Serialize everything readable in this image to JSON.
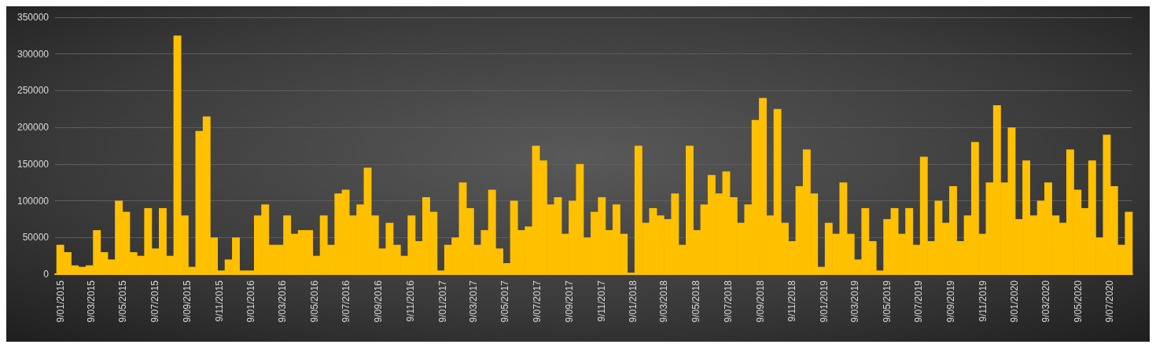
{
  "chart_data": {
    "type": "bar",
    "color": "#ffc000",
    "grid": "y",
    "x": [
      "2015-01-09",
      "2015-01-23",
      "2015-02-06",
      "2015-02-20",
      "2015-03-06",
      "2015-03-20",
      "2015-04-03",
      "2015-04-17",
      "2015-05-01",
      "2015-05-15",
      "2015-05-29",
      "2015-06-12",
      "2015-06-26",
      "2015-07-10",
      "2015-07-24",
      "2015-08-07",
      "2015-08-21",
      "2015-09-04",
      "2015-09-18",
      "2015-10-02",
      "2015-10-16",
      "2015-10-30",
      "2015-11-13",
      "2015-11-27",
      "2015-12-11",
      "2015-12-25",
      "2016-01-08",
      "2016-01-22",
      "2016-02-05",
      "2016-02-19",
      "2016-03-04",
      "2016-03-18",
      "2016-04-01",
      "2016-04-15",
      "2016-04-29",
      "2016-05-13",
      "2016-05-27",
      "2016-06-10",
      "2016-06-24",
      "2016-07-08",
      "2016-07-22",
      "2016-08-05",
      "2016-08-19",
      "2016-09-02",
      "2016-09-16",
      "2016-09-30",
      "2016-10-14",
      "2016-10-28",
      "2016-11-11",
      "2016-11-25",
      "2016-12-09",
      "2016-12-23",
      "2017-01-06",
      "2017-01-20",
      "2017-02-03",
      "2017-02-17",
      "2017-03-03",
      "2017-03-17",
      "2017-03-31",
      "2017-04-14",
      "2017-04-28",
      "2017-05-12",
      "2017-05-26",
      "2017-06-09",
      "2017-06-23",
      "2017-07-07",
      "2017-07-21",
      "2017-08-04",
      "2017-08-18",
      "2017-09-01",
      "2017-09-15",
      "2017-09-29",
      "2017-10-13",
      "2017-10-27",
      "2017-11-10",
      "2017-11-24",
      "2017-12-08",
      "2017-12-22",
      "2018-01-05",
      "2018-01-19",
      "2018-02-02",
      "2018-02-16",
      "2018-03-02",
      "2018-03-16",
      "2018-03-30",
      "2018-04-13",
      "2018-04-27",
      "2018-05-11",
      "2018-05-25",
      "2018-06-08",
      "2018-06-22",
      "2018-07-06",
      "2018-07-20",
      "2018-08-03",
      "2018-08-17",
      "2018-08-31",
      "2018-09-14",
      "2018-09-28",
      "2018-10-12",
      "2018-10-26",
      "2018-11-09",
      "2018-11-23",
      "2018-12-07",
      "2018-12-21",
      "2019-01-04",
      "2019-01-18",
      "2019-02-01",
      "2019-02-15",
      "2019-03-01",
      "2019-03-15",
      "2019-03-29",
      "2019-04-12",
      "2019-04-26",
      "2019-05-10",
      "2019-05-24",
      "2019-06-07",
      "2019-06-21",
      "2019-07-05",
      "2019-07-19",
      "2019-08-02",
      "2019-08-16",
      "2019-08-30",
      "2019-09-13",
      "2019-09-27",
      "2019-10-11",
      "2019-10-25",
      "2019-11-08",
      "2019-11-22",
      "2019-12-06",
      "2019-12-20",
      "2020-01-03",
      "2020-01-17",
      "2020-01-31",
      "2020-02-14",
      "2020-02-28",
      "2020-03-13",
      "2020-03-27",
      "2020-04-10",
      "2020-04-24",
      "2020-05-08",
      "2020-05-22",
      "2020-06-05",
      "2020-06-19",
      "2020-07-03",
      "2020-07-17",
      "2020-07-31",
      "2020-08-14"
    ],
    "values": [
      40000,
      30000,
      12000,
      10000,
      12000,
      60000,
      30000,
      20000,
      100000,
      85000,
      30000,
      25000,
      90000,
      35000,
      90000,
      25000,
      325000,
      80000,
      10000,
      195000,
      215000,
      50000,
      5000,
      20000,
      50000,
      5000,
      5000,
      80000,
      95000,
      40000,
      40000,
      80000,
      55000,
      60000,
      60000,
      25000,
      80000,
      40000,
      110000,
      115000,
      80000,
      95000,
      145000,
      80000,
      35000,
      70000,
      40000,
      25000,
      80000,
      45000,
      105000,
      85000,
      5000,
      40000,
      50000,
      125000,
      90000,
      40000,
      60000,
      115000,
      35000,
      15000,
      100000,
      60000,
      65000,
      175000,
      155000,
      95000,
      105000,
      55000,
      100000,
      150000,
      50000,
      85000,
      105000,
      60000,
      95000,
      55000,
      2000,
      175000,
      70000,
      90000,
      80000,
      75000,
      110000,
      40000,
      175000,
      60000,
      95000,
      135000,
      110000,
      140000,
      105000,
      70000,
      95000,
      210000,
      240000,
      80000,
      225000,
      70000,
      45000,
      120000,
      170000,
      110000,
      10000,
      70000,
      55000,
      125000,
      55000,
      20000,
      90000,
      45000,
      5000,
      75000,
      90000,
      55000,
      90000,
      40000,
      160000,
      45000,
      100000,
      70000,
      120000,
      45000,
      80000,
      180000,
      55000,
      125000,
      230000,
      125000,
      200000,
      75000,
      155000,
      80000,
      100000,
      125000,
      80000,
      70000,
      170000,
      115000,
      90000,
      155000,
      50000,
      190000,
      120000,
      40000,
      85000
    ],
    "xlim": [
      "2014-12-30",
      "2020-08-21"
    ],
    "xticks": [
      {
        "value": "2015-01-09",
        "label": "9/01/2015"
      },
      {
        "value": "2015-03-09",
        "label": "9/03/2015"
      },
      {
        "value": "2015-05-09",
        "label": "9/05/2015"
      },
      {
        "value": "2015-07-09",
        "label": "9/07/2015"
      },
      {
        "value": "2015-09-09",
        "label": "9/09/2015"
      },
      {
        "value": "2015-11-09",
        "label": "9/11/2015"
      },
      {
        "value": "2016-01-09",
        "label": "9/01/2016"
      },
      {
        "value": "2016-03-09",
        "label": "9/03/2016"
      },
      {
        "value": "2016-05-09",
        "label": "9/05/2016"
      },
      {
        "value": "2016-07-09",
        "label": "9/07/2016"
      },
      {
        "value": "2016-09-09",
        "label": "9/09/2016"
      },
      {
        "value": "2016-11-09",
        "label": "9/11/2016"
      },
      {
        "value": "2017-01-09",
        "label": "9/01/2017"
      },
      {
        "value": "2017-03-09",
        "label": "9/03/2017"
      },
      {
        "value": "2017-05-09",
        "label": "9/05/2017"
      },
      {
        "value": "2017-07-09",
        "label": "9/07/2017"
      },
      {
        "value": "2017-09-09",
        "label": "9/09/2017"
      },
      {
        "value": "2017-11-09",
        "label": "9/11/2017"
      },
      {
        "value": "2018-01-09",
        "label": "9/01/2018"
      },
      {
        "value": "2018-03-09",
        "label": "9/03/2018"
      },
      {
        "value": "2018-05-09",
        "label": "9/05/2018"
      },
      {
        "value": "2018-07-09",
        "label": "9/07/2018"
      },
      {
        "value": "2018-09-09",
        "label": "9/09/2018"
      },
      {
        "value": "2018-11-09",
        "label": "9/11/2018"
      },
      {
        "value": "2019-01-09",
        "label": "9/01/2019"
      },
      {
        "value": "2019-03-09",
        "label": "9/03/2019"
      },
      {
        "value": "2019-05-09",
        "label": "9/05/2019"
      },
      {
        "value": "2019-07-09",
        "label": "9/07/2019"
      },
      {
        "value": "2019-09-09",
        "label": "9/09/2019"
      },
      {
        "value": "2019-11-09",
        "label": "9/11/2019"
      },
      {
        "value": "2020-01-09",
        "label": "9/01/2020"
      },
      {
        "value": "2020-03-09",
        "label": "9/03/2020"
      },
      {
        "value": "2020-05-09",
        "label": "9/05/2020"
      },
      {
        "value": "2020-07-09",
        "label": "9/07/2020"
      }
    ],
    "ylim": [
      0,
      350000
    ],
    "yticks": [
      0,
      50000,
      100000,
      150000,
      200000,
      250000,
      300000,
      350000
    ]
  }
}
